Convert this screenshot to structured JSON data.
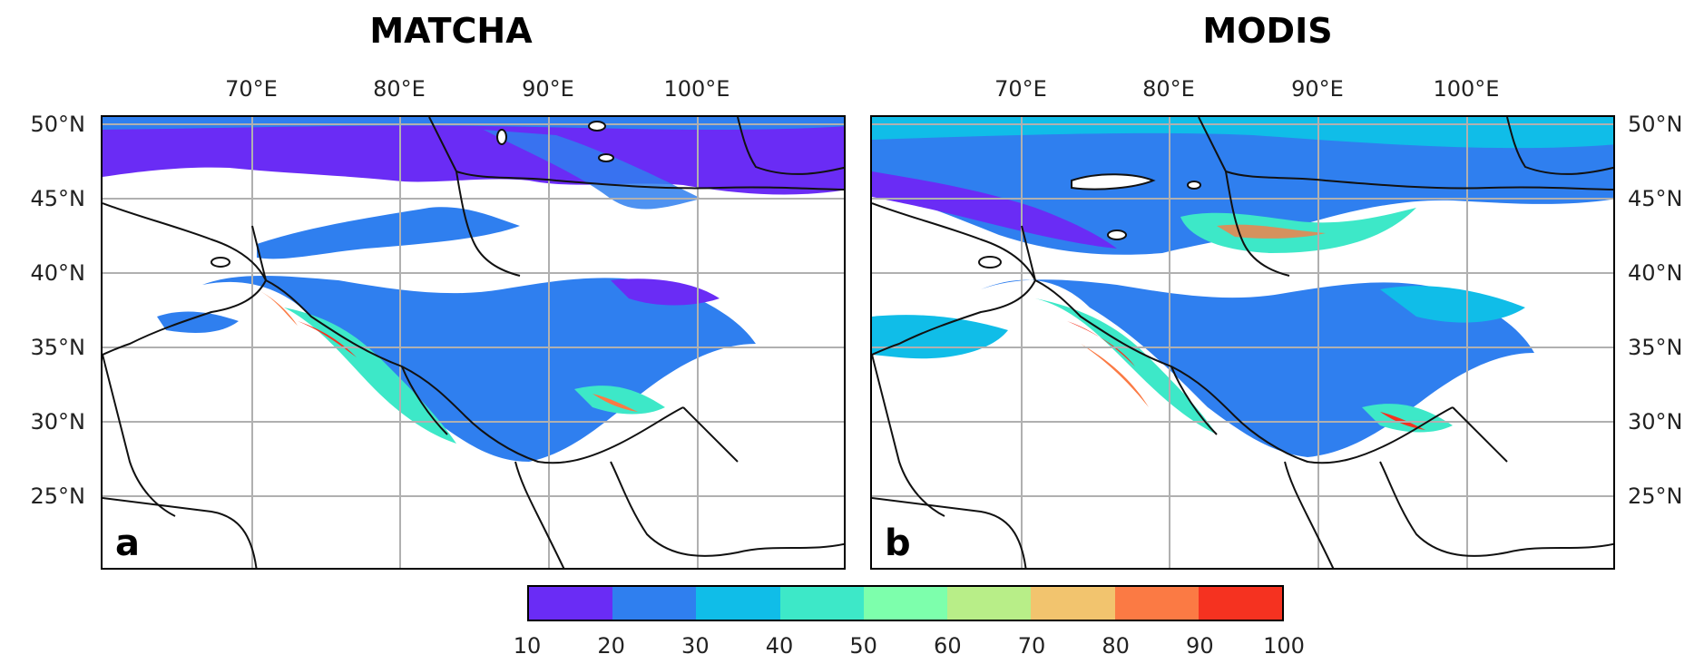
{
  "panels": [
    {
      "title": "MATCHA",
      "letter": "a"
    },
    {
      "title": "MODIS",
      "letter": "b"
    }
  ],
  "lon_labels": [
    "70°E",
    "80°E",
    "90°E",
    "100°E"
  ],
  "lat_labels": [
    "50°N",
    "45°N",
    "40°N",
    "35°N",
    "30°N",
    "25°N"
  ],
  "colorbar": {
    "ticks": [
      "10",
      "20",
      "30",
      "40",
      "50",
      "60",
      "70",
      "80",
      "90",
      "100"
    ],
    "colors": [
      "#6a2cf5",
      "#2f7fef",
      "#10bde8",
      "#3de8c8",
      "#7dffac",
      "#b8ee88",
      "#f2c46e",
      "#fb7a44",
      "#f53220"
    ]
  }
}
